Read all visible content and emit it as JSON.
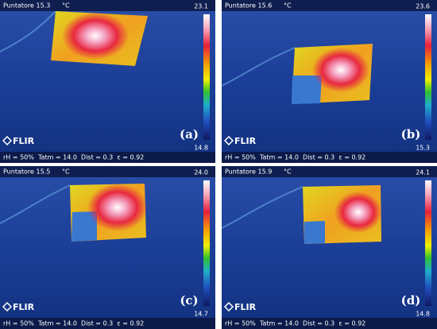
{
  "panels": [
    {
      "pointer": "Puntatore 15.3",
      "unit": "°C",
      "max": "23.1",
      "min": "14.8",
      "letter": "(a)",
      "logo": "FLIR",
      "footer": "rH = 50%  Tatm = 14.0  Dist = 0.3  ε = 0.92"
    },
    {
      "pointer": "Puntatore 15.6",
      "unit": "°C",
      "max": "23.6",
      "min": "15.3",
      "letter": "(b)",
      "logo": "FLIR",
      "footer": "rH = 50%  Tatm = 14.0  Dist = 0.3  ε = 0.92"
    },
    {
      "pointer": "Puntatore 15.5",
      "unit": "°C",
      "max": "24.0",
      "min": "14.7",
      "letter": "(c)",
      "logo": "FLIR",
      "footer": "rH = 50%  Tatm = 14.0  Dist = 0.3  ε = 0.92"
    },
    {
      "pointer": "Puntatore 15.9",
      "unit": "°C",
      "max": "24.1",
      "min": "14.8",
      "letter": "(d)",
      "logo": "FLIR",
      "footer": "rH = 50%  Tatm = 14.0  Dist = 0.3  ε = 0.92"
    }
  ]
}
